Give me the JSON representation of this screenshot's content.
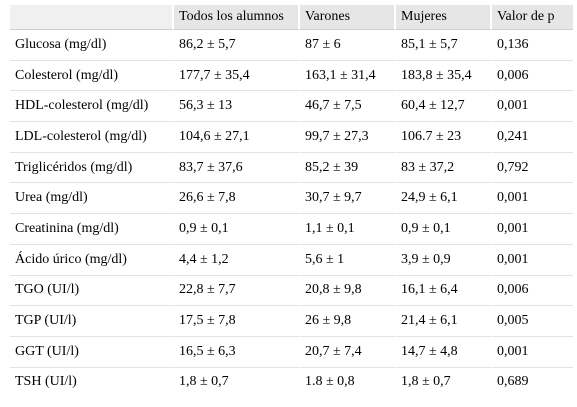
{
  "table": {
    "headers": [
      "",
      "Todos los alumnos",
      "Varones",
      "Mujeres",
      "Valor de p"
    ],
    "rows": [
      [
        "Glucosa (mg/dl)",
        "86,2 ± 5,7",
        "87 ± 6",
        "85,1 ± 5,7",
        "0,136"
      ],
      [
        "Colesterol (mg/dl)",
        "177,7 ± 35,4",
        "163,1 ± 31,4",
        "183,8 ± 35,4",
        "0,006"
      ],
      [
        "HDL-colesterol (mg/dl)",
        "56,3 ± 13",
        "46,7 ± 7,5",
        "60,4 ± 12,7",
        "0,001"
      ],
      [
        "LDL-colesterol (mg/dl)",
        "104,6 ± 27,1",
        "99,7 ± 27,3",
        "106.7 ± 23",
        "0,241"
      ],
      [
        "Triglicéridos (mg/dl)",
        "83,7 ± 37,6",
        "85,2 ± 39",
        "83 ± 37,2",
        "0,792"
      ],
      [
        "Urea (mg/dl)",
        "26,6 ± 7,8",
        "30,7 ± 9,7",
        "24,9 ± 6,1",
        "0,001"
      ],
      [
        "Creatinina (mg/dl)",
        "0,9 ± 0,1",
        "1,1 ± 0,1",
        "0,9 ± 0,1",
        "0,001"
      ],
      [
        "Ácido úrico (mg/dl)",
        "4,4 ± 1,2",
        "5,6 ± 1",
        "3,9 ± 0,9",
        "0,001"
      ],
      [
        "TGO (UI/l)",
        "22,8 ± 7,7",
        "20,8 ± 9,8",
        "16,1 ± 6,4",
        "0,006"
      ],
      [
        "TGP (UI/l)",
        "17,5 ± 7,8",
        "26 ± 9,8",
        "21,4 ± 6,1",
        "0,005"
      ],
      [
        "GGT (UI/l)",
        "16,5 ± 6,3",
        "20,7 ± 7,4",
        "14,7 ± 4,8",
        "0,001"
      ],
      [
        "TSH (UI/l)",
        "1,8 ± 0,7",
        "1.8 ± 0,8",
        "1,8 ± 0,7",
        "0,689"
      ]
    ]
  }
}
